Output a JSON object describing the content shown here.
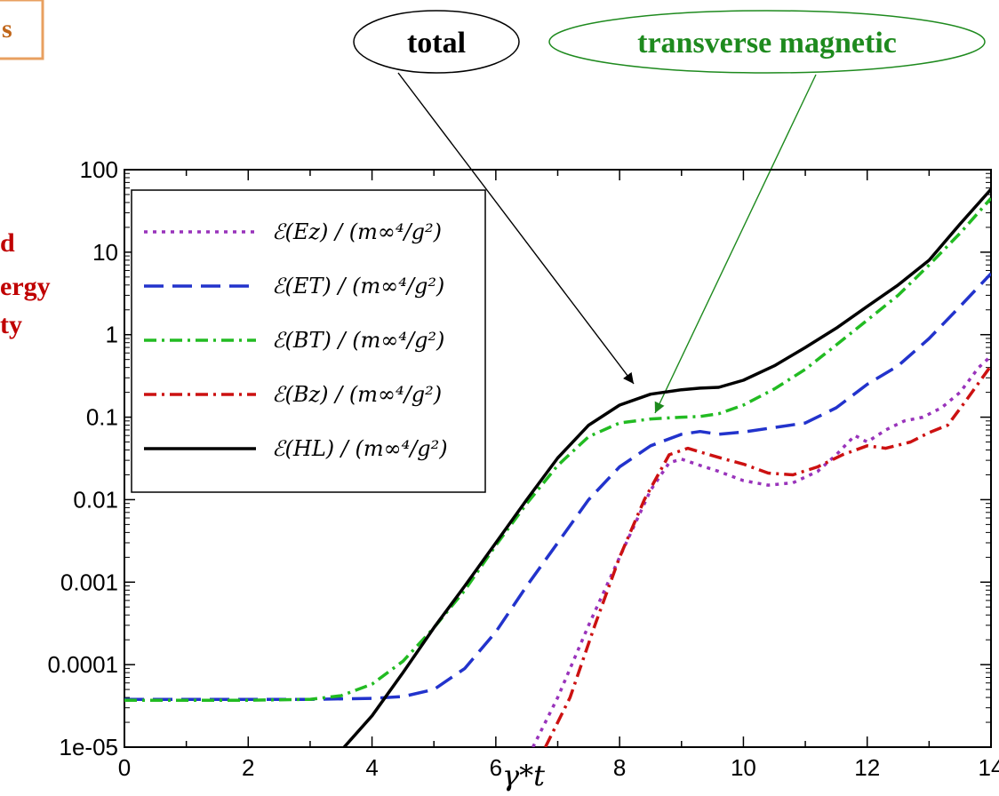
{
  "header": {
    "fragment_box_text": "s",
    "left_fragments": [
      "d",
      "ergy",
      "ty"
    ]
  },
  "callouts": [
    {
      "text": "total",
      "color": "#000000"
    },
    {
      "text": "transverse magnetic",
      "color": "#1e8a1e"
    }
  ],
  "chart_data": {
    "type": "line",
    "xlabel": "γ*t",
    "ylabel": "",
    "xlim": [
      0,
      14
    ],
    "ylim": [
      1e-05,
      100
    ],
    "yscale": "log",
    "x_ticks": [
      "0",
      "2",
      "4",
      "6",
      "8",
      "10",
      "12",
      "14"
    ],
    "y_ticks": [
      "1e-05",
      "0.0001",
      "0.001",
      "0.01",
      "0.1",
      "1",
      "10",
      "100"
    ],
    "legend_position": "top-left",
    "legend_suffix": " / (m∞⁴/g²)",
    "series": [
      {
        "name": "ℰ(Ez)",
        "color": "#9933bb",
        "dash": "4,6",
        "points": [
          [
            6.6,
            1e-05
          ],
          [
            7.0,
            4e-05
          ],
          [
            7.5,
            0.0003
          ],
          [
            8.0,
            0.002
          ],
          [
            8.5,
            0.013
          ],
          [
            8.8,
            0.028
          ],
          [
            9.0,
            0.031
          ],
          [
            9.3,
            0.026
          ],
          [
            9.6,
            0.022
          ],
          [
            10.0,
            0.017
          ],
          [
            10.4,
            0.015
          ],
          [
            10.8,
            0.016
          ],
          [
            11.2,
            0.022
          ],
          [
            11.5,
            0.035
          ],
          [
            11.8,
            0.06
          ],
          [
            12.0,
            0.05
          ],
          [
            12.3,
            0.07
          ],
          [
            12.6,
            0.09
          ],
          [
            12.9,
            0.1
          ],
          [
            13.2,
            0.13
          ],
          [
            13.5,
            0.2
          ],
          [
            13.8,
            0.4
          ],
          [
            14.0,
            0.55
          ]
        ]
      },
      {
        "name": "ℰ(ET)",
        "color": "#2233cc",
        "dash": "22,10",
        "points": [
          [
            0,
            3.8e-05
          ],
          [
            1,
            3.8e-05
          ],
          [
            2,
            3.8e-05
          ],
          [
            3,
            3.8e-05
          ],
          [
            4,
            3.9e-05
          ],
          [
            4.5,
            4.1e-05
          ],
          [
            5,
            5e-05
          ],
          [
            5.5,
            9e-05
          ],
          [
            6,
            0.00025
          ],
          [
            6.5,
            0.0009
          ],
          [
            7,
            0.003
          ],
          [
            7.5,
            0.01
          ],
          [
            8,
            0.025
          ],
          [
            8.5,
            0.045
          ],
          [
            9,
            0.062
          ],
          [
            9.3,
            0.067
          ],
          [
            9.6,
            0.062
          ],
          [
            10,
            0.066
          ],
          [
            10.5,
            0.075
          ],
          [
            11,
            0.085
          ],
          [
            11.5,
            0.13
          ],
          [
            12,
            0.25
          ],
          [
            12.5,
            0.42
          ],
          [
            13,
            0.9
          ],
          [
            13.5,
            2.2
          ],
          [
            14,
            5.5
          ]
        ]
      },
      {
        "name": "ℰ(BT)",
        "color": "#22bb22",
        "dash": "14,6,3,6",
        "points": [
          [
            0,
            3.7e-05
          ],
          [
            1,
            3.7e-05
          ],
          [
            2,
            3.7e-05
          ],
          [
            3,
            3.8e-05
          ],
          [
            3.5,
            4.2e-05
          ],
          [
            4,
            5.8e-05
          ],
          [
            4.5,
            0.00011
          ],
          [
            5,
            0.00028
          ],
          [
            5.5,
            0.0008
          ],
          [
            6,
            0.0028
          ],
          [
            6.5,
            0.009
          ],
          [
            7,
            0.026
          ],
          [
            7.5,
            0.058
          ],
          [
            8,
            0.085
          ],
          [
            8.5,
            0.095
          ],
          [
            9,
            0.1
          ],
          [
            9.3,
            0.102
          ],
          [
            9.6,
            0.11
          ],
          [
            10,
            0.14
          ],
          [
            10.5,
            0.22
          ],
          [
            11,
            0.38
          ],
          [
            11.5,
            0.75
          ],
          [
            12,
            1.5
          ],
          [
            12.5,
            3
          ],
          [
            13,
            7
          ],
          [
            13.5,
            17
          ],
          [
            14,
            45
          ]
        ]
      },
      {
        "name": "ℰ(Bz)",
        "color": "#cc1111",
        "dash": "14,6,3,6",
        "points": [
          [
            6.8,
            1e-05
          ],
          [
            7.2,
            4e-05
          ],
          [
            7.6,
            0.0003
          ],
          [
            8.0,
            0.002
          ],
          [
            8.4,
            0.01
          ],
          [
            8.8,
            0.035
          ],
          [
            9.1,
            0.042
          ],
          [
            9.4,
            0.036
          ],
          [
            9.7,
            0.031
          ],
          [
            10,
            0.027
          ],
          [
            10.4,
            0.021
          ],
          [
            10.8,
            0.02
          ],
          [
            11.2,
            0.025
          ],
          [
            11.6,
            0.035
          ],
          [
            12,
            0.045
          ],
          [
            12.3,
            0.042
          ],
          [
            12.7,
            0.05
          ],
          [
            13,
            0.065
          ],
          [
            13.3,
            0.08
          ],
          [
            13.6,
            0.16
          ],
          [
            14,
            0.42
          ]
        ]
      },
      {
        "name": "ℰ(HL)",
        "color": "#000000",
        "dash": "",
        "points": [
          [
            3.55,
            1e-05
          ],
          [
            4,
            2.4e-05
          ],
          [
            4.5,
            8e-05
          ],
          [
            5,
            0.00028
          ],
          [
            5.5,
            0.0009
          ],
          [
            6,
            0.003
          ],
          [
            6.5,
            0.01
          ],
          [
            7,
            0.032
          ],
          [
            7.5,
            0.08
          ],
          [
            8,
            0.14
          ],
          [
            8.5,
            0.19
          ],
          [
            9,
            0.215
          ],
          [
            9.3,
            0.225
          ],
          [
            9.6,
            0.23
          ],
          [
            10,
            0.28
          ],
          [
            10.5,
            0.42
          ],
          [
            11,
            0.7
          ],
          [
            11.5,
            1.2
          ],
          [
            12,
            2.2
          ],
          [
            12.5,
            4
          ],
          [
            13,
            8
          ],
          [
            13.5,
            22
          ],
          [
            14,
            58
          ]
        ]
      }
    ]
  }
}
